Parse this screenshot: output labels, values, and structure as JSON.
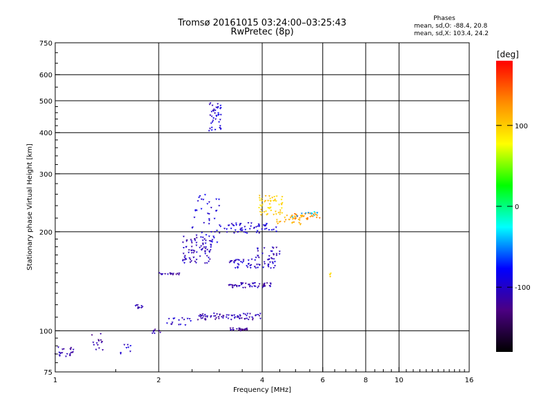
{
  "chart_data": {
    "type": "scatter",
    "title": "Tromsø 20161015 03:24:00–03:25:43",
    "subtitle": "RwPretec (8p)",
    "xlabel": "Frequency [MHz]",
    "ylabel": "Stationary phase Virtual Height [km]",
    "x_scale": "log2",
    "y_scale": "log",
    "xlim": [
      1,
      16
    ],
    "ylim": [
      75,
      750
    ],
    "x_ticks": [
      1,
      2,
      4,
      6,
      8,
      10,
      16
    ],
    "y_ticks": [
      75,
      100,
      200,
      300,
      400,
      500,
      600,
      750
    ],
    "grid": true,
    "phases_box": {
      "heading": "Phases",
      "o_mode": "mean, sd,O: -88.4, 20.8",
      "x_mode": "mean, sd,X: 103.4, 24.2"
    },
    "colorbar": {
      "label": "[deg]",
      "range": [
        -180,
        180
      ],
      "ticks": [
        100,
        0,
        -100
      ],
      "colormap": [
        "#000000",
        "#4b0082",
        "#0000ff",
        "#00ffff",
        "#00ff00",
        "#ffff00",
        "#ff8c00",
        "#ff0000"
      ]
    },
    "clusters": [
      {
        "f_range": [
          1.0,
          1.13
        ],
        "h_range": [
          83,
          90
        ],
        "phase": -110,
        "n": 22
      },
      {
        "f_range": [
          1.27,
          1.38
        ],
        "h_range": [
          85,
          98
        ],
        "phase": -115,
        "n": 14
      },
      {
        "f_range": [
          1.55,
          1.68
        ],
        "h_range": [
          83,
          92
        ],
        "phase": -100,
        "n": 8
      },
      {
        "f_range": [
          1.7,
          1.82
        ],
        "h_range": [
          117,
          121
        ],
        "phase": -110,
        "n": 10
      },
      {
        "f_range": [
          1.9,
          2.05
        ],
        "h_range": [
          98,
          101
        ],
        "phase": -115,
        "n": 8
      },
      {
        "f_range": [
          1.9,
          2.3
        ],
        "h_range": [
          148,
          150
        ],
        "phase": -115,
        "n": 16
      },
      {
        "f_range": [
          2.1,
          2.5
        ],
        "h_range": [
          104,
          110
        ],
        "phase": -100,
        "n": 16
      },
      {
        "f_range": [
          2.35,
          2.85
        ],
        "h_range": [
          160,
          195
        ],
        "phase": -105,
        "n": 80
      },
      {
        "f_range": [
          2.5,
          3.0
        ],
        "h_range": [
          185,
          260
        ],
        "phase": -95,
        "n": 40
      },
      {
        "f_range": [
          2.8,
          3.05
        ],
        "h_range": [
          405,
          500
        ],
        "phase": -95,
        "n": 40
      },
      {
        "f_range": [
          2.6,
          4.0
        ],
        "h_range": [
          108,
          113
        ],
        "phase": -110,
        "n": 70
      },
      {
        "f_range": [
          3.2,
          3.65
        ],
        "h_range": [
          100,
          102
        ],
        "phase": -120,
        "n": 24
      },
      {
        "f_range": [
          3.2,
          4.3
        ],
        "h_range": [
          135,
          140
        ],
        "phase": -110,
        "n": 50
      },
      {
        "f_range": [
          3.2,
          4.4
        ],
        "h_range": [
          155,
          165
        ],
        "phase": -100,
        "n": 55
      },
      {
        "f_range": [
          3.0,
          4.4
        ],
        "h_range": [
          198,
          213
        ],
        "phase": -95,
        "n": 60
      },
      {
        "f_range": [
          3.8,
          4.5
        ],
        "h_range": [
          165,
          180
        ],
        "phase": -105,
        "n": 25
      },
      {
        "f_range": [
          3.9,
          4.6
        ],
        "h_range": [
          225,
          258
        ],
        "phase": 100,
        "n": 55
      },
      {
        "f_range": [
          4.4,
          5.3
        ],
        "h_range": [
          210,
          225
        ],
        "phase": 110,
        "n": 30
      },
      {
        "f_range": [
          4.9,
          5.9
        ],
        "h_range": [
          218,
          228
        ],
        "phase": 130,
        "n": 25
      },
      {
        "f_range": [
          4.9,
          5.9
        ],
        "h_range": [
          220,
          232
        ],
        "phase": -40,
        "n": 12
      },
      {
        "f_range": [
          6.25,
          6.35
        ],
        "h_range": [
          146,
          150
        ],
        "phase": 100,
        "n": 4
      }
    ]
  }
}
